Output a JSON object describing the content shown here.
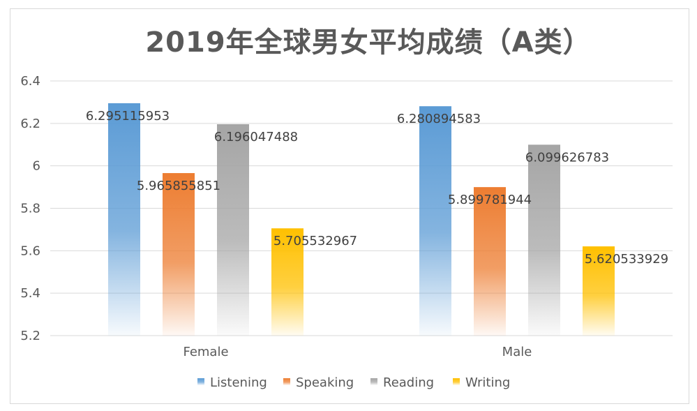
{
  "chart_data": {
    "type": "bar",
    "title": "2019年全球男女平均成绩（A类）",
    "categories": [
      "Female",
      "Male"
    ],
    "series": [
      {
        "name": "Listening",
        "values": [
          6.295115953,
          6.280894583
        ],
        "labels": [
          "6.295115953",
          "6.280894583"
        ],
        "color": "#5b9bd5"
      },
      {
        "name": "Speaking",
        "values": [
          5.965855851,
          5.899781944
        ],
        "labels": [
          "5.965855851",
          "5.899781944"
        ],
        "color": "#ed7d31"
      },
      {
        "name": "Reading",
        "values": [
          6.196047488,
          6.099626783
        ],
        "labels": [
          "6.196047488",
          "6.099626783"
        ],
        "color": "#a5a5a5"
      },
      {
        "name": "Writing",
        "values": [
          5.705532967,
          5.620533929
        ],
        "labels": [
          "5.705532967",
          "5.620533929"
        ],
        "color": "#ffc000"
      }
    ],
    "ylim": [
      5.2,
      6.4
    ],
    "yticks": [
      "5.2",
      "5.4",
      "5.6",
      "5.8",
      "6",
      "6.2",
      "6.4"
    ],
    "grid": true,
    "legend_position": "bottom"
  }
}
